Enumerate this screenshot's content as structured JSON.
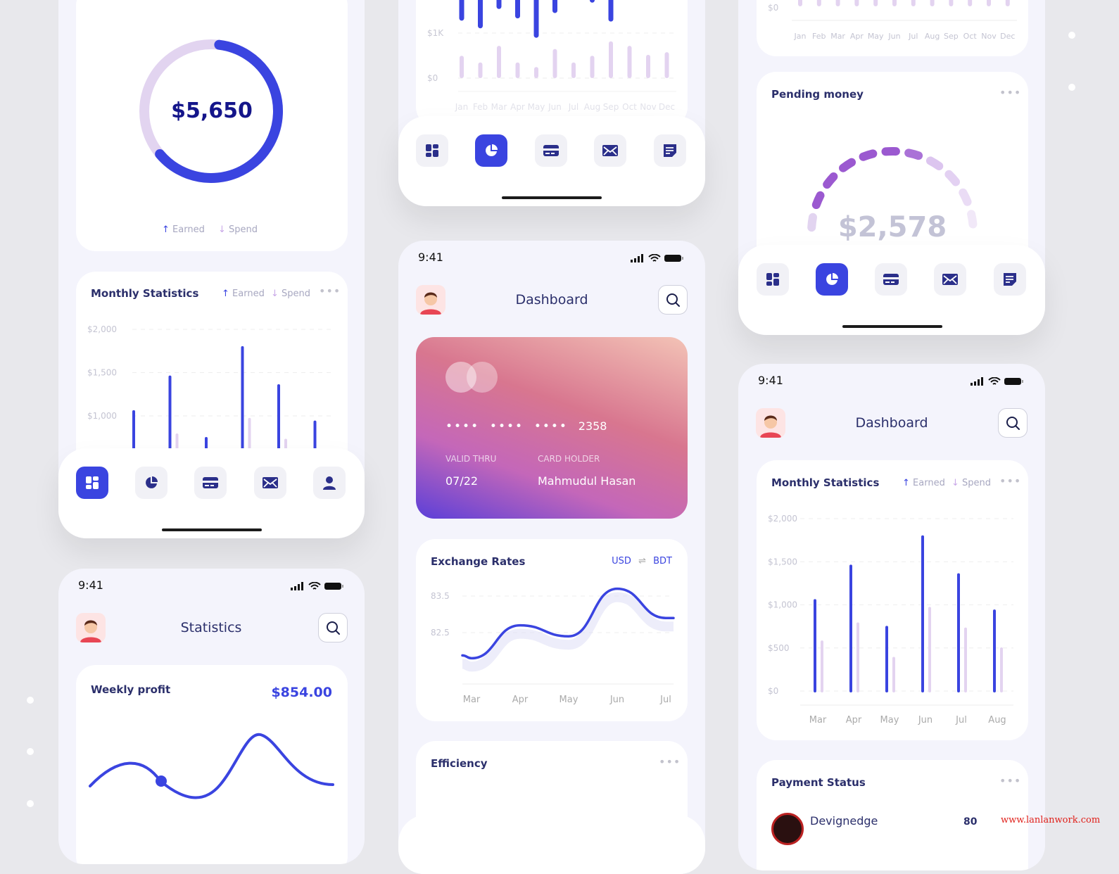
{
  "colors": {
    "accent": "#3a44e0",
    "spend": "#e3d3f0",
    "gauge": "#9b59d0",
    "text": "#2b2f6b",
    "watermark": "#e0201a"
  },
  "balance_card": {
    "amount": "$5,650",
    "earned_label": "Earned",
    "spend_label": "Spend",
    "earned_fraction": 0.62
  },
  "monthly_left": {
    "title": "Monthly Statistics",
    "earned_label": "Earned",
    "spend_label": "Spend"
  },
  "nav_icons": [
    "dashboard-icon",
    "pie-chart-icon",
    "card-icon",
    "mail-icon",
    "user-icon"
  ],
  "nav_icons_alt": [
    "dashboard-icon",
    "pie-chart-icon",
    "card-icon",
    "mail-icon",
    "notes-icon"
  ],
  "statistics_screen": {
    "time": "9:41",
    "title": "Statistics",
    "weekly_profit_label": "Weekly profit",
    "weekly_profit_value": "$854.00"
  },
  "dashboard_screen": {
    "time": "9:41",
    "title": "Dashboard",
    "card": {
      "masked": [
        "••••",
        "••••",
        "••••"
      ],
      "last4": "2358",
      "valid_label": "VALID THRU",
      "valid": "07/22",
      "holder_label": "CARD HOLDER",
      "holder": "Mahmudul Hasan"
    },
    "exchange": {
      "title": "Exchange Rates",
      "from": "USD",
      "swap": "⇌",
      "to": "BDT"
    },
    "efficiency_title": "Efficiency"
  },
  "pending": {
    "title": "Pending money",
    "amount": "$2,578"
  },
  "dashboard_right": {
    "time": "9:41",
    "title": "Dashboard",
    "monthly_title": "Monthly Statistics",
    "earned_label": "Earned",
    "spend_label": "Spend",
    "payment_title": "Payment Status",
    "payment_item": "Devignedge",
    "payment_value": "80"
  },
  "watermark": "www.lanlanwork.com",
  "chart_data": [
    {
      "type": "bar",
      "title": "Monthly Statistics",
      "categories": [
        "Mar",
        "Apr",
        "May",
        "Jun",
        "Jul",
        "Aug"
      ],
      "series": [
        {
          "name": "Earned",
          "values": [
            1050,
            1450,
            740,
            1790,
            1350,
            930
          ]
        },
        {
          "name": "Spend",
          "values": [
            570,
            780,
            380,
            960,
            720,
            490
          ]
        }
      ],
      "yticks": [
        "$0",
        "$500",
        "$1,000",
        "$1,500",
        "$2,000"
      ],
      "ylim": [
        0,
        2000
      ]
    },
    {
      "type": "bar",
      "categories": [
        "Jan",
        "Feb",
        "Mar",
        "Apr",
        "May",
        "Jun",
        "Jul",
        "Aug",
        "Sep",
        "Oct",
        "Nov",
        "Dec"
      ],
      "yticks": [
        "$0",
        "$1K"
      ],
      "series": [
        {
          "name": "Spend",
          "values": [
            0.45,
            0.3,
            0.67,
            0.3,
            0.2,
            0.6,
            0.3,
            0.45,
            0.77,
            0.67,
            0.47,
            0.53
          ]
        },
        {
          "name": "Earned (lower end, $K)",
          "values": [
            1.33,
            1.16,
            1.59,
            1.38,
            0.95,
            1.5,
            null,
            1.73,
            1.31,
            null,
            null,
            null
          ]
        }
      ]
    },
    {
      "type": "line",
      "title": "Exchange Rates",
      "categories": [
        "Mar",
        "Apr",
        "May",
        "Jun",
        "Jul"
      ],
      "values": [
        81.8,
        82.7,
        82.4,
        83.7,
        82.9
      ],
      "yticks": [
        "82.5",
        "83.5"
      ]
    },
    {
      "type": "bar",
      "categories": [
        "Jan",
        "Feb",
        "Mar",
        "Apr",
        "May",
        "Jun",
        "Jul",
        "Aug",
        "Sep",
        "Oct",
        "Nov",
        "Dec"
      ],
      "yticks": [
        "$0"
      ]
    }
  ]
}
